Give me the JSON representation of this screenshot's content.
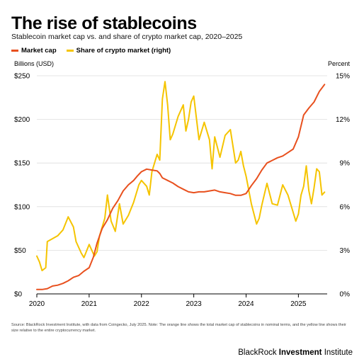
{
  "colors": {
    "market_cap": "#E8501E",
    "share": "#F5C400",
    "grid": "#dddddd",
    "axis": "#000000"
  },
  "chart_data": {
    "type": "line",
    "title": "The rise of stablecoins",
    "subtitle": "Stablecoin market cap vs. and share of crypto market cap, 2020–2025",
    "ylabel_left": "Billions (USD)",
    "ylabel_right": "Percent",
    "ylim_left": [
      0,
      250
    ],
    "ylim_right": [
      0,
      15
    ],
    "yticks_left": [
      "$0",
      "$50",
      "$100",
      "$150",
      "$200",
      "$250"
    ],
    "yticks_right": [
      "0%",
      "3%",
      "6%",
      "9%",
      "12%",
      "15%"
    ],
    "x_range": [
      2020.0,
      2025.55
    ],
    "x_ticks": [
      2020,
      2021,
      2022,
      2023,
      2024,
      2025
    ],
    "x_tick_labels": [
      "2020",
      "2021",
      "2022",
      "2023",
      "2024",
      "2025"
    ],
    "grid": true,
    "legend_position": "top-left",
    "series": [
      {
        "name": "Market cap",
        "axis": "left",
        "x": [
          2020.0,
          2020.1,
          2020.2,
          2020.3,
          2020.4,
          2020.5,
          2020.6,
          2020.7,
          2020.8,
          2020.9,
          2021.0,
          2021.08,
          2021.15,
          2021.25,
          2021.35,
          2021.45,
          2021.55,
          2021.65,
          2021.75,
          2021.85,
          2021.92,
          2022.0,
          2022.1,
          2022.2,
          2022.3,
          2022.35,
          2022.4,
          2022.5,
          2022.6,
          2022.7,
          2022.8,
          2022.9,
          2023.0,
          2023.1,
          2023.2,
          2023.3,
          2023.4,
          2023.5,
          2023.6,
          2023.7,
          2023.8,
          2023.9,
          2024.0,
          2024.1,
          2024.2,
          2024.3,
          2024.4,
          2024.5,
          2024.6,
          2024.7,
          2024.8,
          2024.9,
          2025.0,
          2025.1,
          2025.2,
          2025.3,
          2025.4,
          2025.5
        ],
        "values": [
          5,
          5,
          6,
          9,
          10,
          12,
          15,
          19,
          21,
          26,
          30,
          42,
          58,
          75,
          85,
          98,
          107,
          118,
          125,
          130,
          135,
          140,
          143,
          142,
          141,
          138,
          133,
          130,
          127,
          123,
          120,
          117,
          116,
          117,
          117,
          118,
          119,
          117,
          116,
          115,
          113,
          113,
          115,
          124,
          132,
          142,
          150,
          153,
          156,
          158,
          162,
          166,
          180,
          205,
          213,
          220,
          232,
          240
        ],
        "values_right_scale_percent": null
      },
      {
        "name": "Share of crypto market (right)",
        "axis": "right",
        "x": [
          2020.0,
          2020.05,
          2020.1,
          2020.17,
          2020.2,
          2020.3,
          2020.4,
          2020.5,
          2020.6,
          2020.7,
          2020.75,
          2020.85,
          2020.9,
          2021.0,
          2021.05,
          2021.1,
          2021.15,
          2021.2,
          2021.3,
          2021.35,
          2021.42,
          2021.5,
          2021.58,
          2021.65,
          2021.75,
          2021.85,
          2021.95,
          2022.0,
          2022.1,
          2022.15,
          2022.2,
          2022.3,
          2022.35,
          2022.4,
          2022.45,
          2022.5,
          2022.55,
          2022.6,
          2022.7,
          2022.8,
          2022.85,
          2022.9,
          2022.95,
          2023.0,
          2023.1,
          2023.2,
          2023.3,
          2023.35,
          2023.4,
          2023.5,
          2023.6,
          2023.7,
          2023.8,
          2023.85,
          2023.9,
          2023.95,
          2024.0,
          2024.1,
          2024.2,
          2024.25,
          2024.3,
          2024.4,
          2024.5,
          2024.6,
          2024.7,
          2024.8,
          2024.9,
          2024.95,
          2025.0,
          2025.05,
          2025.1,
          2025.15,
          2025.2,
          2025.25,
          2025.3,
          2025.35,
          2025.4,
          2025.45,
          2025.5
        ],
        "values": [
          2.6,
          2.2,
          1.6,
          1.8,
          3.6,
          3.8,
          4.0,
          4.4,
          5.3,
          4.6,
          3.6,
          2.8,
          2.5,
          3.4,
          3.0,
          2.6,
          2.9,
          4.0,
          5.2,
          6.8,
          5.0,
          4.3,
          6.2,
          4.8,
          5.4,
          6.3,
          7.5,
          7.8,
          7.4,
          6.8,
          8.4,
          9.6,
          9.2,
          13.4,
          14.6,
          13.0,
          10.6,
          11.0,
          12.2,
          13.0,
          11.2,
          12.0,
          13.2,
          13.6,
          10.6,
          11.8,
          10.6,
          8.6,
          10.8,
          9.4,
          10.9,
          11.3,
          9.0,
          9.2,
          9.8,
          8.8,
          8.1,
          6.2,
          4.8,
          5.2,
          6.1,
          7.6,
          6.2,
          6.1,
          7.5,
          6.8,
          5.6,
          5.0,
          5.5,
          6.8,
          7.4,
          8.8,
          7.1,
          6.2,
          7.3,
          8.6,
          8.4,
          6.8,
          7.0
        ]
      }
    ]
  },
  "source_text": "Source: BlackRock Investment Institute, with data from Coingecko, July 2025. Note: The orange line shows the total market cap of stablecoins in nominal terms, and the yellow line shows their size relative to the entire cryptocurrency market.",
  "brand": {
    "prefix": "BlackRock",
    "bold": "Investment",
    "suffix": "Institute"
  }
}
